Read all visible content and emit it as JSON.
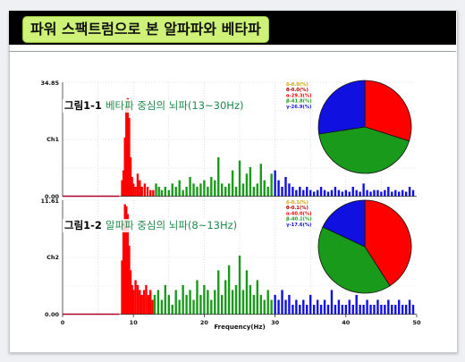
{
  "slide": {
    "title": "파워 스팩트럼으로 본 알파파와 베타파"
  },
  "captions": [
    {
      "prefix": "그림1-1 ",
      "label": "베타파 중심의 뇌파",
      "range": "(13~30Hz)",
      "label_color": "#1f8a4c"
    },
    {
      "prefix": "그림1-2 ",
      "label": "알파파 중심의 뇌파",
      "range": "(8~13Hz)",
      "label_color": "#1f8a4c"
    }
  ],
  "colors": {
    "theta": "#d40000",
    "alpha": "#ff0000",
    "beta": "#1a9a1a",
    "gamma": "#1010e0",
    "baseline_red": "#b0002a",
    "baseline_other": "#e0a000"
  },
  "chart_data": [
    {
      "type": "bar",
      "title": "",
      "xlabel": "Frequency(Hz)",
      "ylabel": "Ch1",
      "ylim": [
        0.0,
        34.85
      ],
      "xlim": [
        0,
        50
      ],
      "y_tick_labels": [
        "34.85",
        "Ch1",
        "0.00"
      ],
      "x_ticks": [
        0,
        10,
        20,
        30,
        40,
        50
      ],
      "grid": true,
      "bands": [
        {
          "name": "alpha",
          "range": [
            8,
            13
          ],
          "color": "#ff0000"
        },
        {
          "name": "beta",
          "range": [
            13,
            30
          ],
          "color": "#1a9a1a"
        },
        {
          "name": "gamma",
          "range": [
            30,
            50
          ],
          "color": "#1010e0"
        }
      ],
      "bars": [
        [
          8.4,
          5
        ],
        [
          8.6,
          8
        ],
        [
          8.8,
          18
        ],
        [
          9.0,
          28
        ],
        [
          9.2,
          30
        ],
        [
          9.4,
          24
        ],
        [
          9.6,
          12
        ],
        [
          9.8,
          6
        ],
        [
          10.0,
          4
        ],
        [
          10.3,
          3
        ],
        [
          10.6,
          7
        ],
        [
          10.9,
          5
        ],
        [
          11.2,
          3
        ],
        [
          11.6,
          4
        ],
        [
          12.0,
          3
        ],
        [
          12.4,
          2
        ],
        [
          12.8,
          2
        ],
        [
          13.2,
          4
        ],
        [
          13.6,
          3
        ],
        [
          14.0,
          2
        ],
        [
          14.5,
          3
        ],
        [
          15.0,
          2
        ],
        [
          15.5,
          4
        ],
        [
          16.0,
          3
        ],
        [
          16.5,
          5
        ],
        [
          17.0,
          2
        ],
        [
          17.5,
          3
        ],
        [
          18.0,
          6
        ],
        [
          18.5,
          4
        ],
        [
          19.0,
          3
        ],
        [
          19.5,
          4
        ],
        [
          20.0,
          5
        ],
        [
          20.5,
          3
        ],
        [
          21.0,
          6
        ],
        [
          21.5,
          5
        ],
        [
          22.0,
          12
        ],
        [
          22.5,
          4
        ],
        [
          23.0,
          3
        ],
        [
          23.5,
          4
        ],
        [
          24.0,
          8
        ],
        [
          24.5,
          3
        ],
        [
          25.0,
          11
        ],
        [
          25.5,
          4
        ],
        [
          26.0,
          7
        ],
        [
          26.5,
          9
        ],
        [
          27.0,
          3
        ],
        [
          27.5,
          4
        ],
        [
          28.0,
          10
        ],
        [
          28.5,
          5
        ],
        [
          29.0,
          3
        ],
        [
          29.5,
          7
        ],
        [
          30.0,
          8
        ],
        [
          30.5,
          5
        ],
        [
          31.0,
          3
        ],
        [
          31.5,
          6
        ],
        [
          32.0,
          4
        ],
        [
          32.5,
          3
        ],
        [
          33.0,
          2
        ],
        [
          33.5,
          3
        ],
        [
          34.0,
          2
        ],
        [
          34.5,
          3
        ],
        [
          35.0,
          2
        ],
        [
          35.5,
          1.5
        ],
        [
          36.0,
          2
        ],
        [
          36.5,
          3
        ],
        [
          37.0,
          2
        ],
        [
          37.5,
          1.5
        ],
        [
          38.0,
          2
        ],
        [
          38.5,
          3
        ],
        [
          39.0,
          2
        ],
        [
          39.5,
          1.5
        ],
        [
          40.0,
          2
        ],
        [
          40.5,
          1.5
        ],
        [
          41.0,
          3
        ],
        [
          41.5,
          2
        ],
        [
          42.0,
          1.5
        ],
        [
          42.5,
          4
        ],
        [
          43.0,
          2
        ],
        [
          43.5,
          1.5
        ],
        [
          44.0,
          2
        ],
        [
          44.5,
          2
        ],
        [
          45.0,
          1.5
        ],
        [
          45.5,
          2
        ],
        [
          46.0,
          3
        ],
        [
          46.5,
          1.5
        ],
        [
          47.0,
          2
        ],
        [
          47.5,
          1.5
        ],
        [
          48.0,
          2
        ],
        [
          48.5,
          1.5
        ],
        [
          49.0,
          3
        ],
        [
          49.5,
          2
        ]
      ],
      "pie": {
        "legend": [
          "δ-0.0(%)",
          "θ-0.0(%)",
          "α-29.3(%)",
          "β-41.8(%)",
          "γ-26.9(%)"
        ],
        "legend_colors": [
          "#d4a000",
          "#b00000",
          "#ff0000",
          "#1a9a1a",
          "#1010e0"
        ],
        "slices": [
          {
            "name": "α",
            "value": 29.3,
            "color": "#ff0000"
          },
          {
            "name": "β",
            "value": 41.8,
            "color": "#1a9a1a"
          },
          {
            "name": "γ",
            "value": 26.9,
            "color": "#1010e0"
          }
        ]
      }
    },
    {
      "type": "bar",
      "title": "",
      "xlabel": "Frequency(Hz)",
      "ylabel": "Ch2",
      "ylim": [
        0.0,
        11.61
      ],
      "xlim": [
        0,
        50
      ],
      "y_tick_labels": [
        "11.61",
        "Ch2",
        "0.00"
      ],
      "x_ticks": [
        0,
        10,
        20,
        30,
        40,
        50
      ],
      "grid": true,
      "bands": [
        {
          "name": "alpha",
          "range": [
            8,
            13
          ],
          "color": "#ff0000"
        },
        {
          "name": "beta",
          "range": [
            13,
            30
          ],
          "color": "#1a9a1a"
        },
        {
          "name": "gamma",
          "range": [
            30,
            50
          ],
          "color": "#1010e0"
        }
      ],
      "bars": [
        [
          8.4,
          5.5
        ],
        [
          8.6,
          9.5
        ],
        [
          8.8,
          11.2
        ],
        [
          9.0,
          11.0
        ],
        [
          9.2,
          10.2
        ],
        [
          9.4,
          7.0
        ],
        [
          9.6,
          4.5
        ],
        [
          9.8,
          3.0
        ],
        [
          10.0,
          2.5
        ],
        [
          10.3,
          3.5
        ],
        [
          10.6,
          3.0
        ],
        [
          10.9,
          2.5
        ],
        [
          11.2,
          2.0
        ],
        [
          11.5,
          2.5
        ],
        [
          11.8,
          3.0
        ],
        [
          12.1,
          2.0
        ],
        [
          12.4,
          2.5
        ],
        [
          12.7,
          1.5
        ],
        [
          13.0,
          2.0
        ],
        [
          13.5,
          2.5
        ],
        [
          14.0,
          1.5
        ],
        [
          14.5,
          3.0
        ],
        [
          15.0,
          2.0
        ],
        [
          15.5,
          1.0
        ],
        [
          16.0,
          2.5
        ],
        [
          16.5,
          1.5
        ],
        [
          17.0,
          3.0
        ],
        [
          17.5,
          2.0
        ],
        [
          18.0,
          2.5
        ],
        [
          18.5,
          1.5
        ],
        [
          19.0,
          3.5
        ],
        [
          19.5,
          2.0
        ],
        [
          20.0,
          3.0
        ],
        [
          20.5,
          2.5
        ],
        [
          21.0,
          1.5
        ],
        [
          21.5,
          2.5
        ],
        [
          22.0,
          4.5
        ],
        [
          22.5,
          2.0
        ],
        [
          23.0,
          3.5
        ],
        [
          23.5,
          5.0
        ],
        [
          24.0,
          2.5
        ],
        [
          24.5,
          3.0
        ],
        [
          25.0,
          6.0
        ],
        [
          25.5,
          2.5
        ],
        [
          26.0,
          4.5
        ],
        [
          26.5,
          3.0
        ],
        [
          27.0,
          2.0
        ],
        [
          27.5,
          3.5
        ],
        [
          28.0,
          2.0
        ],
        [
          28.5,
          1.5
        ],
        [
          29.0,
          2.5
        ],
        [
          29.5,
          1.5
        ],
        [
          30.0,
          2.0
        ],
        [
          30.5,
          1.5
        ],
        [
          31.0,
          2.5
        ],
        [
          31.5,
          1.5
        ],
        [
          32.0,
          2.0
        ],
        [
          32.5,
          1.0
        ],
        [
          33.0,
          1.5
        ],
        [
          33.5,
          1.0
        ],
        [
          34.0,
          1.5
        ],
        [
          34.5,
          1.0
        ],
        [
          35.0,
          2.0
        ],
        [
          35.5,
          1.0
        ],
        [
          36.0,
          1.5
        ],
        [
          36.5,
          1.0
        ],
        [
          37.0,
          1.5
        ],
        [
          37.5,
          1.0
        ],
        [
          38.0,
          2.5
        ],
        [
          38.5,
          1.0
        ],
        [
          39.0,
          1.5
        ],
        [
          39.5,
          1.0
        ],
        [
          40.0,
          1.0
        ],
        [
          40.5,
          1.5
        ],
        [
          41.0,
          1.0
        ],
        [
          41.5,
          2.0
        ],
        [
          42.0,
          1.0
        ],
        [
          42.5,
          1.0
        ],
        [
          43.0,
          1.5
        ],
        [
          43.5,
          1.0
        ],
        [
          44.0,
          1.0
        ],
        [
          44.5,
          1.5
        ],
        [
          45.0,
          1.0
        ],
        [
          45.5,
          1.0
        ],
        [
          46.0,
          1.5
        ],
        [
          46.5,
          1.0
        ],
        [
          47.0,
          1.0
        ],
        [
          47.5,
          1.5
        ],
        [
          48.0,
          1.0
        ],
        [
          48.5,
          1.0
        ],
        [
          49.0,
          1.5
        ],
        [
          49.5,
          1.0
        ]
      ],
      "pie": {
        "legend": [
          "δ-0.1(%)",
          "θ-0.1(%)",
          "α-40.0(%)",
          "β-40.1(%)",
          "γ-17.6(%)"
        ],
        "legend_colors": [
          "#d4a000",
          "#b00000",
          "#ff0000",
          "#1a9a1a",
          "#1010e0"
        ],
        "slices": [
          {
            "name": "α",
            "value": 40.0,
            "color": "#ff0000"
          },
          {
            "name": "β",
            "value": 40.1,
            "color": "#1a9a1a"
          },
          {
            "name": "γ",
            "value": 17.6,
            "color": "#1010e0"
          }
        ]
      }
    }
  ]
}
